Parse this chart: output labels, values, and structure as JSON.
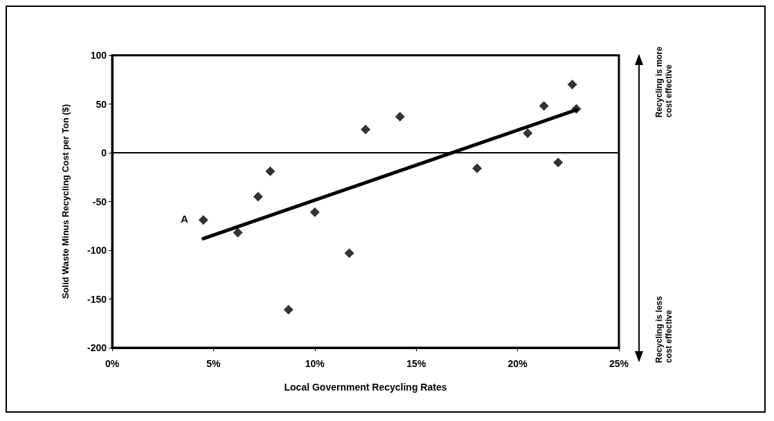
{
  "chart_data": {
    "type": "scatter",
    "xlabel": "Local Government Recycling Rates",
    "ylabel": "Solid Waste Minus Recycling Cost per Ton ($)",
    "xlim": [
      0,
      25
    ],
    "xticks": [
      {
        "value": 0,
        "label": "0%"
      },
      {
        "value": 5,
        "label": "5%"
      },
      {
        "value": 10,
        "label": "10%"
      },
      {
        "value": 15,
        "label": "15%"
      },
      {
        "value": 20,
        "label": "20%"
      },
      {
        "value": 25,
        "label": "25%"
      }
    ],
    "ylim": [
      -200,
      100
    ],
    "yticks": [
      -200,
      -150,
      -100,
      -50,
      0,
      50,
      100
    ],
    "series": [
      {
        "color": "#000000",
        "marker": "diamond",
        "x": [
          4.5,
          6.2,
          7.2,
          7.8,
          8.7,
          10.0,
          11.7,
          12.5,
          14.2,
          18.0,
          20.5,
          21.3,
          22.0,
          22.7,
          22.9
        ],
        "values": [
          -69,
          -82,
          -45,
          -19,
          -161,
          -61,
          -103,
          24,
          37,
          -16,
          20,
          48,
          -10,
          70,
          45
        ]
      },
      {
        "type": "line",
        "color": "#000000",
        "marker": "none",
        "line_style": "solid",
        "x": [
          4.5,
          22.9
        ],
        "values": [
          -88,
          44
        ]
      }
    ],
    "ref_lines": [
      {
        "axis": "y",
        "value": 0,
        "color": "#000000",
        "line_style": "solid"
      }
    ],
    "annotations": [
      {
        "text": "A",
        "x": 4.5,
        "y": -69
      },
      "Recycling is more cost effective",
      "Recycling is less cost effective"
    ],
    "grid": false
  }
}
